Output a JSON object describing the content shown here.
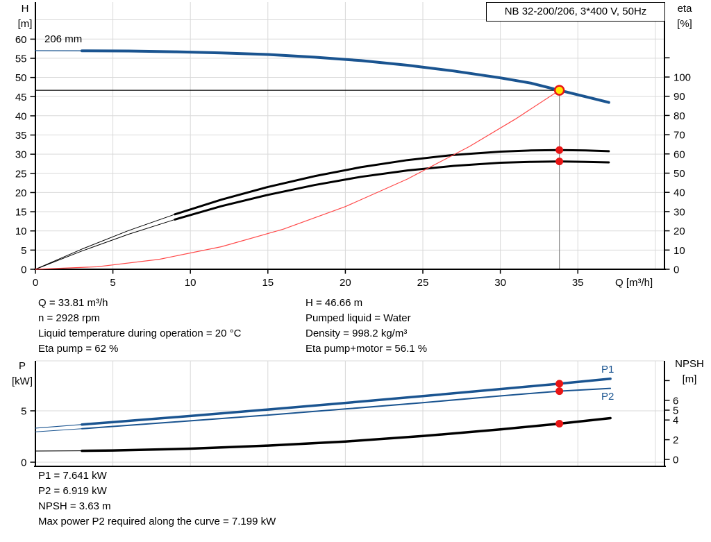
{
  "colors": {
    "blue": "#1a5490",
    "marker_red": "#e81515",
    "duty_yellow": "#ffe800",
    "light_red": "#ff4a4a",
    "grid": "#d9d9d9",
    "axis": "#000000",
    "gray_line": "#8a8a8a"
  },
  "title_box": {
    "text": "NB 32-200/206, 3*400 V, 50Hz"
  },
  "info_top_left": [
    "Q = 33.81 m³/h",
    "n = 2928 rpm",
    "Liquid temperature during operation = 20 °C",
    "Eta pump = 62 %"
  ],
  "info_top_right": [
    "H = 46.66 m",
    "Pumped liquid = Water",
    "Density = 998.2 kg/m³",
    "Eta pump+motor = 56.1 %"
  ],
  "info_bottom": [
    "P1 = 7.641 kW",
    "P2 = 6.919 kW",
    "NPSH = 3.63 m",
    "Max power P2 required along the curve = 7.199 kW"
  ],
  "chart_data": [
    {
      "type": "line",
      "title": "NB 32-200/206, 3*400 V, 50Hz",
      "xlabel": "Q [m³/h]",
      "ylabel_left_lines": [
        "H",
        "[m]"
      ],
      "ylabel_right_lines": [
        "eta",
        "[%]"
      ],
      "curve_label": "206 mm",
      "xlim": [
        0,
        40.6
      ],
      "ylim_left": [
        0,
        69.7
      ],
      "ylim_right": [
        0,
        139
      ],
      "grid": true,
      "x_ticks": [
        0,
        5,
        10,
        15,
        20,
        25,
        30,
        35
      ],
      "y_left_ticks": [
        0,
        5,
        10,
        15,
        20,
        25,
        30,
        35,
        40,
        45,
        50,
        55,
        60
      ],
      "y_right_ticks": [
        0,
        10,
        20,
        30,
        40,
        50,
        60,
        70,
        80,
        90,
        100
      ],
      "operating_point": {
        "Q": 33.81,
        "H": 46.66,
        "eta_pump": 62,
        "eta_pump_motor": 56.1
      },
      "reference_lines": {
        "head_m": 46.66,
        "flow_m3h": 33.81
      },
      "series": [
        {
          "name": "head-curve-206mm",
          "axis": "left",
          "color": "blue",
          "width": 4,
          "thin_until": 3,
          "x": [
            0,
            3,
            6,
            9,
            12,
            15,
            18,
            21,
            24,
            27,
            30,
            32,
            33.81,
            35.5,
            37
          ],
          "y": [
            57.0,
            56.95,
            56.9,
            56.7,
            56.4,
            56.0,
            55.3,
            54.4,
            53.2,
            51.7,
            49.9,
            48.5,
            46.66,
            45.0,
            43.5
          ]
        },
        {
          "name": "eta-pump-curve",
          "axis": "right",
          "color": "#000000",
          "width": 3,
          "thin_until": 9,
          "x": [
            0,
            3,
            6,
            9,
            12,
            15,
            18,
            21,
            24,
            27,
            30,
            32,
            33.81,
            35.5,
            37
          ],
          "y": [
            0,
            10.5,
            20.1,
            28.6,
            36.2,
            42.8,
            48.4,
            53.1,
            56.8,
            59.5,
            61.2,
            61.8,
            62.0,
            61.8,
            61.4
          ]
        },
        {
          "name": "eta-pump-motor-curve",
          "axis": "right",
          "color": "#000000",
          "width": 3,
          "thin_until": 9,
          "x": [
            0,
            3,
            6,
            9,
            12,
            15,
            18,
            21,
            24,
            27,
            30,
            32,
            33.81,
            35.5,
            37
          ],
          "y": [
            0,
            9.5,
            18.2,
            25.9,
            32.8,
            38.7,
            43.8,
            48.1,
            51.4,
            53.8,
            55.4,
            55.9,
            56.1,
            55.9,
            55.6
          ]
        },
        {
          "name": "affinity-parabola",
          "axis": "left",
          "color": "light_red",
          "width": 1.2,
          "x": [
            0,
            4,
            8,
            12,
            16,
            20,
            24,
            28,
            31,
            33.81
          ],
          "y": [
            0,
            0.65,
            2.61,
            5.88,
            10.45,
            16.33,
            23.52,
            32.01,
            39.23,
            46.66
          ]
        }
      ]
    },
    {
      "type": "line",
      "xlabel": "",
      "ylabel_left_lines": [
        "P",
        "[kW]"
      ],
      "ylabel_right_lines": [
        "NPSH",
        "[m]"
      ],
      "xlim": [
        0,
        40.6
      ],
      "ylim_left": [
        0,
        10
      ],
      "ylim_right": [
        0,
        10
      ],
      "grid": true,
      "y_left_ticks": [
        5,
        0
      ],
      "y_right_ticks": [
        6,
        5,
        4,
        2,
        0
      ],
      "operating_point": {
        "Q": 33.81,
        "P1": 7.641,
        "P2": 6.919,
        "NPSH": 3.63
      },
      "series": [
        {
          "name": "p1-curve",
          "axis": "left",
          "color": "blue",
          "width": 3.5,
          "thin_until": 3,
          "label": "P1",
          "x": [
            0,
            3,
            5,
            10,
            15,
            20,
            25,
            30,
            33.81,
            37.1
          ],
          "y": [
            3.32,
            3.67,
            3.9,
            4.5,
            5.13,
            5.77,
            6.43,
            7.12,
            7.641,
            8.13
          ]
        },
        {
          "name": "p2-curve",
          "axis": "left",
          "color": "blue",
          "width": 2,
          "thin_until": 3,
          "label": "P2",
          "x": [
            0,
            3,
            5,
            10,
            15,
            20,
            25,
            30,
            33.81,
            37.1
          ],
          "y": [
            2.95,
            3.26,
            3.48,
            4.03,
            4.59,
            5.18,
            5.8,
            6.45,
            6.919,
            7.19
          ]
        },
        {
          "name": "npsh-curve",
          "axis": "right",
          "color": "#000000",
          "width": 3.5,
          "thin_until": 3,
          "x": [
            0,
            3,
            5,
            10,
            15,
            20,
            25,
            30,
            33.81,
            37.1
          ],
          "y": [
            0.85,
            0.87,
            0.91,
            1.09,
            1.4,
            1.82,
            2.37,
            3.04,
            3.63,
            4.19
          ]
        }
      ]
    }
  ]
}
